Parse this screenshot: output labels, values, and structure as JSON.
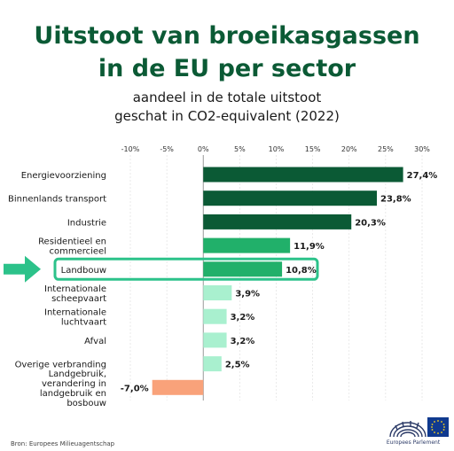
{
  "chart_data": {
    "type": "bar",
    "orientation": "horizontal",
    "title_lines": [
      "Uitstoot van broeikasgassen",
      "in de EU per sector"
    ],
    "subtitle_lines": [
      "aandeel in de totale uitstoot",
      "geschat in CO2-equivalent (2022)"
    ],
    "xlim": [
      -10,
      30
    ],
    "x_ticks": [
      "-10%",
      "-5%",
      "0%",
      "5%",
      "10%",
      "15%",
      "20%",
      "25%",
      "30%"
    ],
    "x_tick_values": [
      -10,
      -5,
      0,
      5,
      10,
      15,
      20,
      25,
      30
    ],
    "grid": true,
    "highlighted_category": "Landbouw",
    "categories": [
      {
        "label_lines": [
          "Energievoorziening"
        ],
        "value": 27.4,
        "value_label": "27,4%",
        "color": "#0b5a35"
      },
      {
        "label_lines": [
          "Binnenlands transport"
        ],
        "value": 23.8,
        "value_label": "23,8%",
        "color": "#0b5a35"
      },
      {
        "label_lines": [
          "Industrie"
        ],
        "value": 20.3,
        "value_label": "20,3%",
        "color": "#0b5a35"
      },
      {
        "label_lines": [
          "Residentieel en",
          "commercieel"
        ],
        "value": 11.9,
        "value_label": "11,9%",
        "color": "#21b06a"
      },
      {
        "label_lines": [
          "Landbouw"
        ],
        "value": 10.8,
        "value_label": "10,8%",
        "color": "#21b06a"
      },
      {
        "label_lines": [
          "Internationale",
          "scheepvaart"
        ],
        "value": 3.9,
        "value_label": "3,9%",
        "color": "#a9f0cf"
      },
      {
        "label_lines": [
          "Internationale",
          "luchtvaart"
        ],
        "value": 3.2,
        "value_label": "3,2%",
        "color": "#a9f0cf"
      },
      {
        "label_lines": [
          "Afval"
        ],
        "value": 3.2,
        "value_label": "3,2%",
        "color": "#a9f0cf"
      },
      {
        "label_lines": [
          "Overige verbranding"
        ],
        "value": 2.5,
        "value_label": "2,5%",
        "color": "#a9f0cf"
      },
      {
        "label_lines": [
          "Landgebruik,",
          "verandering in",
          "landgebruik en",
          "bosbouw"
        ],
        "value": -7.0,
        "value_label": "-7,0%",
        "color": "#f9a27a"
      }
    ]
  },
  "colors": {
    "title": "#0b5a35",
    "highlight": "#2cc28a",
    "grid": "#dddddd"
  },
  "source": "Bron: Europees Milieuagentschap",
  "logo": {
    "text": "Europees Parlement",
    "icon": "european-parliament-logo"
  }
}
